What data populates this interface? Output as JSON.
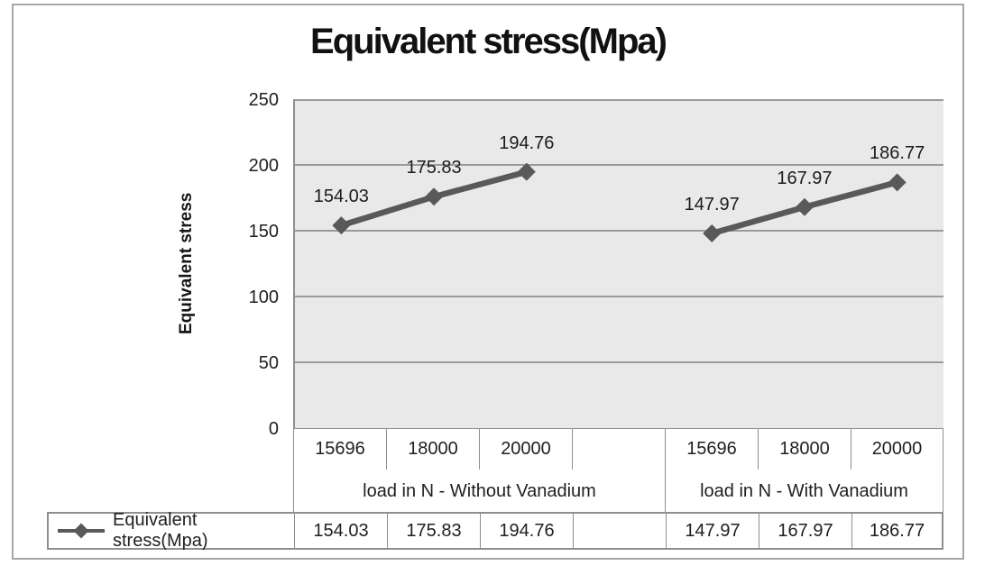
{
  "chart": {
    "title": "Equivalent stress(Mpa)",
    "y_axis_title": "Equivalent stress",
    "y_ticks": [
      "250",
      "200",
      "150",
      "100",
      "50",
      "0"
    ],
    "legend_label": "Equivalent stress(Mpa)"
  },
  "axis_table": {
    "row_values": [
      "154.03",
      "175.83",
      "194.76",
      "",
      "147.97",
      "167.97",
      "186.77"
    ]
  },
  "chart_data": {
    "type": "line",
    "title": "Equivalent stress(Mpa)",
    "ylabel": "Equivalent stress",
    "ylim": [
      0,
      250
    ],
    "y_ticks": [
      250,
      200,
      150,
      100,
      50,
      0
    ],
    "grid": true,
    "plot_bg": "#e9e9e9",
    "line_color": "#595959",
    "legend_position": "bottom-table",
    "groups": [
      {
        "label": "load in N - Without Vanadium",
        "categories": [
          "15696",
          "18000",
          "20000"
        ],
        "values": [
          154.03,
          175.83,
          194.76
        ]
      },
      {
        "label": "load in N - With Vanadium",
        "categories": [
          "15696",
          "18000",
          "20000"
        ],
        "values": [
          147.97,
          167.97,
          186.77
        ]
      }
    ],
    "series": [
      {
        "name": "Equivalent stress(Mpa)",
        "values": [
          154.03,
          175.83,
          194.76,
          147.97,
          167.97,
          186.77
        ]
      }
    ]
  }
}
